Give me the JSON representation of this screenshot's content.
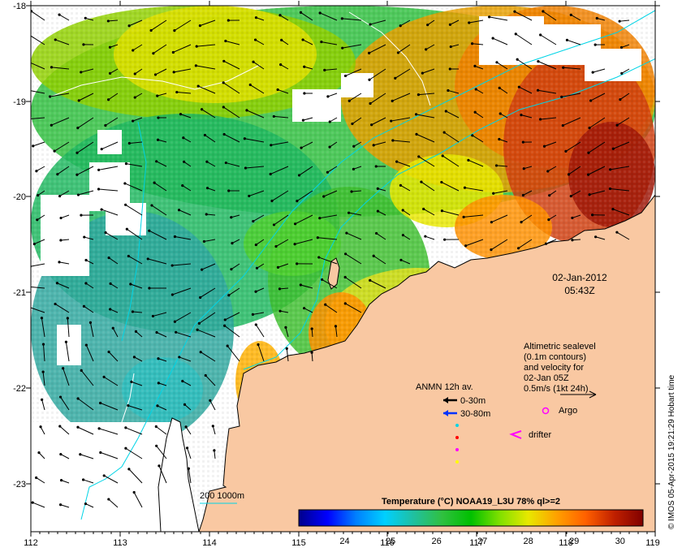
{
  "map": {
    "date": "02-Jan-2012",
    "time": "05:43Z",
    "lon_ticks": [
      "112",
      "113",
      "114",
      "115",
      "116",
      "117",
      "118",
      "119"
    ],
    "lat_ticks": [
      "-18",
      "-19",
      "-20",
      "-21",
      "-22",
      "-23"
    ],
    "lon_range": [
      112,
      119
    ],
    "lat_range": [
      -23.6,
      -18
    ],
    "colors": {
      "land": "#f9c8a2",
      "coast": "#000000",
      "contour": "#00d4e6",
      "sealevel_contour": "#ffffff",
      "arrow": "#000000"
    }
  },
  "sealevel_note": {
    "line1": "Altimetric sealevel",
    "line2": "(0.1m contours)",
    "line3": "and velocity for",
    "line4": "02-Jan 05Z",
    "line5": "0.5m/s (1kt 24h)"
  },
  "anmn": {
    "title": "ANMN 12h av.",
    "depth1": "0-30m",
    "depth2": "30-80m",
    "depth1_color": "#000000",
    "depth2_color": "#0033ff",
    "marker_colors": [
      "#00d4e6",
      "#ff0000",
      "#ff00ff",
      "#ffff00"
    ]
  },
  "argo": {
    "label": "Argo",
    "color": "#ff00ff"
  },
  "drifter": {
    "label": "drifter",
    "color": "#ff00ff"
  },
  "isobath": {
    "label": "200  1000m",
    "color": "#00d4e6"
  },
  "colorbar": {
    "title": "Temperature (°C) NOAA19_L3U 78% ql>=2",
    "ticks": [
      "24",
      "25",
      "26",
      "27",
      "28",
      "29",
      "30"
    ],
    "range": [
      23,
      30.5
    ],
    "stops": [
      "#00008b",
      "#0000ff",
      "#0080ff",
      "#00d0ff",
      "#20c0a0",
      "#30c040",
      "#00c000",
      "#80e000",
      "#e8e800",
      "#ffa000",
      "#ff6000",
      "#c02000",
      "#800000"
    ]
  },
  "credit": "© IMOS 05-Apr-2015 19:21:29 Hobart time"
}
